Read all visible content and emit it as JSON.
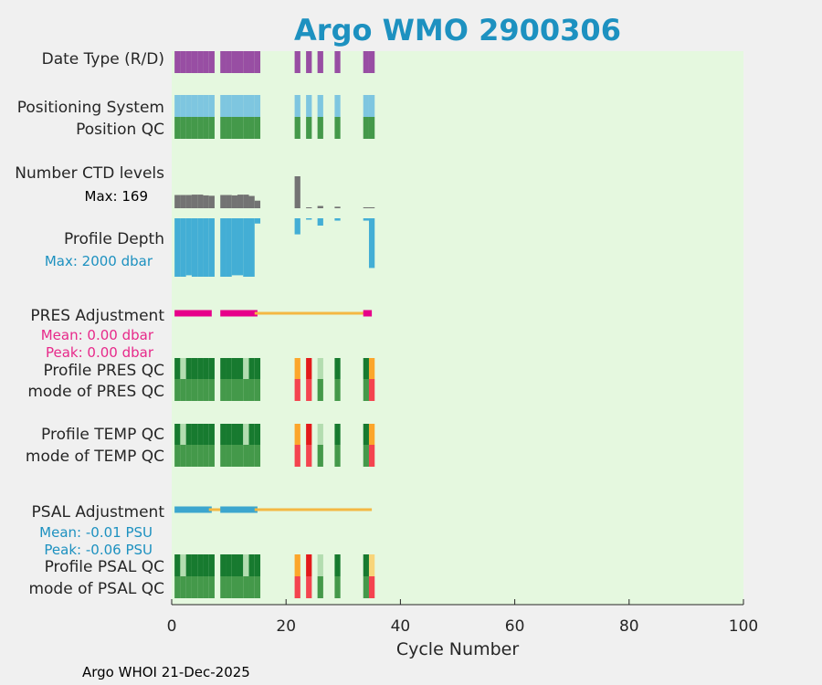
{
  "chart_data": {
    "type": "bar",
    "title": "Argo WMO 2900306",
    "xlabel": "Cycle Number",
    "xlim": [
      0,
      100
    ],
    "xticks": [
      "0",
      "20",
      "40",
      "60",
      "80",
      "100"
    ],
    "footer": "Argo WHOI 21-Dec-2025",
    "row_labels": {
      "date_type": "Date Type (R/D)",
      "positioning_system": "Positioning System",
      "position_qc": "Position QC",
      "ctd_levels": "Number CTD levels",
      "ctd_max": "Max: 169",
      "profile_depth": "Profile Depth",
      "depth_max": "Max: 2000 dbar",
      "pres_adjustment": "PRES Adjustment",
      "pres_mean": "Mean: 0.00 dbar",
      "pres_peak": "Peak: 0.00 dbar",
      "profile_pres_qc": "Profile PRES QC",
      "mode_pres_qc": "mode of PRES QC",
      "profile_temp_qc": "Profile TEMP QC",
      "mode_temp_qc": "mode of TEMP QC",
      "psal_adjustment": "PSAL Adjustment",
      "psal_mean": "Mean: -0.01 PSU",
      "psal_peak": "Peak: -0.06 PSU",
      "profile_psal_qc": "Profile PSAL QC",
      "mode_psal_qc": "mode of PSAL QC"
    },
    "colors": {
      "background": "#e5f8df",
      "date_type": "#984ea3",
      "positioning": "#7ec6e0",
      "qc_good": "#44994a",
      "qc_dark": "#177a2f",
      "qc_light": "#b3ddb0",
      "qc_orange": "#fca62b",
      "qc_red": "#f4444f",
      "qc_red2": "#e31a1c",
      "qc_yellow": "#f8d57a",
      "ctd": "#737373",
      "depth": "#43aed5",
      "pres_adj": "#e7008a",
      "psal_adj": "#3ca6ce",
      "adj_line": "#f4b843"
    },
    "cycles": [
      1,
      2,
      3,
      4,
      5,
      6,
      7,
      9,
      10,
      11,
      12,
      13,
      14,
      15,
      22,
      24,
      26,
      29,
      34,
      35
    ],
    "ctd_levels_max": 169,
    "ctd_levels": {
      "1": 70,
      "2": 70,
      "3": 70,
      "4": 72,
      "5": 72,
      "6": 68,
      "7": 66,
      "9": 70,
      "10": 70,
      "11": 68,
      "12": 72,
      "13": 72,
      "14": 65,
      "15": 40,
      "22": 169,
      "24": 0,
      "26": 12,
      "29": 8,
      "34": 5,
      "35": 5
    },
    "depth_max": 2000,
    "profile_depth": {
      "1": 2000,
      "2": 2000,
      "3": 1950,
      "4": 2000,
      "5": 2000,
      "6": 2000,
      "7": 2000,
      "9": 2000,
      "10": 2000,
      "11": 1950,
      "12": 1950,
      "13": 2000,
      "14": 2000,
      "15": 180,
      "22": 550,
      "24": 0,
      "26": 250,
      "29": 80,
      "34": 80,
      "35": 1700
    },
    "pres_adjustment_segments": [
      [
        1,
        7,
        "pres_adj"
      ],
      [
        9,
        15,
        "pres_adj"
      ],
      [
        15,
        34,
        "adj_line"
      ],
      [
        34,
        35,
        "pres_adj"
      ]
    ],
    "psal_adjustment_segments": [
      [
        1,
        7,
        "psal_adj"
      ],
      [
        7,
        9,
        "adj_line"
      ],
      [
        9,
        15,
        "psal_adj"
      ],
      [
        15,
        35,
        "adj_line"
      ]
    ],
    "rows": {
      "date_type": {
        "1": "date_type",
        "2": "date_type",
        "3": "date_type",
        "4": "date_type",
        "5": "date_type",
        "6": "date_type",
        "7": "date_type",
        "9": "date_type",
        "10": "date_type",
        "11": "date_type",
        "12": "date_type",
        "13": "date_type",
        "14": "date_type",
        "15": "date_type",
        "22": "date_type",
        "24": "date_type",
        "26": "date_type",
        "29": "date_type",
        "34": "date_type",
        "35": "date_type"
      },
      "positioning_system": {
        "1": "positioning",
        "2": "positioning",
        "3": "positioning",
        "4": "positioning",
        "5": "positioning",
        "6": "positioning",
        "7": "positioning",
        "9": "positioning",
        "10": "positioning",
        "11": "positioning",
        "12": "positioning",
        "13": "positioning",
        "14": "positioning",
        "15": "positioning",
        "22": "positioning",
        "24": "positioning",
        "26": "positioning",
        "29": "positioning",
        "34": "positioning",
        "35": "positioning"
      },
      "position_qc": {
        "1": "qc_good",
        "2": "qc_good",
        "3": "qc_good",
        "4": "qc_good",
        "5": "qc_good",
        "6": "qc_good",
        "7": "qc_good",
        "9": "qc_good",
        "10": "qc_good",
        "11": "qc_good",
        "12": "qc_good",
        "13": "qc_good",
        "14": "qc_good",
        "15": "qc_good",
        "22": "qc_good",
        "24": "qc_good",
        "26": "qc_good",
        "29": "qc_good",
        "34": "qc_good",
        "35": "qc_good"
      },
      "profile_pres_qc": {
        "1": "qc_dark",
        "2": "qc_light",
        "3": "qc_dark",
        "4": "qc_dark",
        "5": "qc_dark",
        "6": "qc_dark",
        "7": "qc_dark",
        "9": "qc_dark",
        "10": "qc_dark",
        "11": "qc_dark",
        "12": "qc_dark",
        "13": "qc_light",
        "14": "qc_dark",
        "15": "qc_dark",
        "22": "qc_orange",
        "24": "qc_red2",
        "26": "qc_light",
        "29": "qc_dark",
        "34": "qc_dark",
        "35": "qc_orange"
      },
      "mode_pres_qc": {
        "1": "qc_good",
        "2": "qc_good",
        "3": "qc_good",
        "4": "qc_good",
        "5": "qc_good",
        "6": "qc_good",
        "7": "qc_good",
        "9": "qc_good",
        "10": "qc_good",
        "11": "qc_good",
        "12": "qc_good",
        "13": "qc_good",
        "14": "qc_good",
        "15": "qc_good",
        "22": "qc_red",
        "24": "qc_red",
        "26": "qc_good",
        "29": "qc_good",
        "34": "qc_good",
        "35": "qc_red"
      },
      "profile_temp_qc": {
        "1": "qc_dark",
        "2": "qc_light",
        "3": "qc_dark",
        "4": "qc_dark",
        "5": "qc_dark",
        "6": "qc_dark",
        "7": "qc_dark",
        "9": "qc_dark",
        "10": "qc_dark",
        "11": "qc_dark",
        "12": "qc_dark",
        "13": "qc_light",
        "14": "qc_dark",
        "15": "qc_dark",
        "22": "qc_orange",
        "24": "qc_red2",
        "26": "qc_light",
        "29": "qc_dark",
        "34": "qc_dark",
        "35": "qc_orange"
      },
      "mode_temp_qc": {
        "1": "qc_good",
        "2": "qc_good",
        "3": "qc_good",
        "4": "qc_good",
        "5": "qc_good",
        "6": "qc_good",
        "7": "qc_good",
        "9": "qc_good",
        "10": "qc_good",
        "11": "qc_good",
        "12": "qc_good",
        "13": "qc_good",
        "14": "qc_good",
        "15": "qc_good",
        "22": "qc_red",
        "24": "qc_red",
        "26": "qc_good",
        "29": "qc_good",
        "34": "qc_good",
        "35": "qc_red"
      },
      "profile_psal_qc": {
        "1": "qc_dark",
        "2": "qc_light",
        "3": "qc_dark",
        "4": "qc_dark",
        "5": "qc_dark",
        "6": "qc_dark",
        "7": "qc_dark",
        "9": "qc_dark",
        "10": "qc_dark",
        "11": "qc_dark",
        "12": "qc_dark",
        "13": "qc_light",
        "14": "qc_dark",
        "15": "qc_dark",
        "22": "qc_orange",
        "24": "qc_red2",
        "26": "qc_light",
        "29": "qc_dark",
        "34": "qc_dark",
        "35": "qc_yellow"
      },
      "mode_psal_qc": {
        "1": "qc_good",
        "2": "qc_good",
        "3": "qc_good",
        "4": "qc_good",
        "5": "qc_good",
        "6": "qc_good",
        "7": "qc_good",
        "9": "qc_good",
        "10": "qc_good",
        "11": "qc_good",
        "12": "qc_good",
        "13": "qc_good",
        "14": "qc_good",
        "15": "qc_good",
        "22": "qc_red",
        "24": "qc_red",
        "26": "qc_good",
        "29": "qc_good",
        "34": "qc_good",
        "35": "qc_red"
      }
    }
  }
}
